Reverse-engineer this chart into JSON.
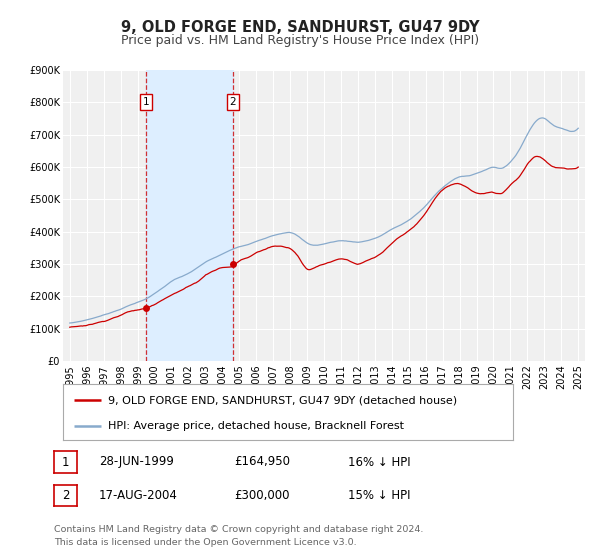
{
  "title": "9, OLD FORGE END, SANDHURST, GU47 9DY",
  "subtitle": "Price paid vs. HM Land Registry's House Price Index (HPI)",
  "ylim": [
    0,
    900000
  ],
  "yticks": [
    0,
    100000,
    200000,
    300000,
    400000,
    500000,
    600000,
    700000,
    800000,
    900000
  ],
  "ytick_labels": [
    "£0",
    "£100K",
    "£200K",
    "£300K",
    "£400K",
    "£500K",
    "£600K",
    "£700K",
    "£800K",
    "£900K"
  ],
  "xlim_start": 1994.6,
  "xlim_end": 2025.4,
  "xticks": [
    1995,
    1996,
    1997,
    1998,
    1999,
    2000,
    2001,
    2002,
    2003,
    2004,
    2005,
    2006,
    2007,
    2008,
    2009,
    2010,
    2011,
    2012,
    2013,
    2014,
    2015,
    2016,
    2017,
    2018,
    2019,
    2020,
    2021,
    2022,
    2023,
    2024,
    2025
  ],
  "red_line_color": "#cc0000",
  "blue_line_color": "#88aacc",
  "plot_bg_color": "#f0f0f0",
  "grid_color": "#ffffff",
  "shade_color": "#ddeeff",
  "marker1_date": 1999.49,
  "marker1_value": 164950,
  "marker2_date": 2004.63,
  "marker2_value": 300000,
  "vline1_date": 1999.49,
  "vline2_date": 2004.63,
  "legend_label_red": "9, OLD FORGE END, SANDHURST, GU47 9DY (detached house)",
  "legend_label_blue": "HPI: Average price, detached house, Bracknell Forest",
  "table_row1": [
    "1",
    "28-JUN-1999",
    "£164,950",
    "16% ↓ HPI"
  ],
  "table_row2": [
    "2",
    "17-AUG-2004",
    "£300,000",
    "15% ↓ HPI"
  ],
  "footer_line1": "Contains HM Land Registry data © Crown copyright and database right 2024.",
  "footer_line2": "This data is licensed under the Open Government Licence v3.0.",
  "title_fontsize": 10.5,
  "subtitle_fontsize": 9,
  "tick_fontsize": 7,
  "legend_fontsize": 8,
  "table_fontsize": 8.5,
  "footer_fontsize": 6.8,
  "hpi_data_x": [
    1995.0,
    1995.5,
    1996.0,
    1996.5,
    1997.0,
    1997.5,
    1998.0,
    1998.5,
    1999.0,
    1999.5,
    2000.0,
    2000.5,
    2001.0,
    2001.5,
    2002.0,
    2002.5,
    2003.0,
    2003.5,
    2004.0,
    2004.5,
    2005.0,
    2005.5,
    2006.0,
    2006.5,
    2007.0,
    2007.5,
    2008.0,
    2008.5,
    2009.0,
    2009.5,
    2010.0,
    2010.5,
    2011.0,
    2011.5,
    2012.0,
    2012.5,
    2013.0,
    2013.5,
    2014.0,
    2014.5,
    2015.0,
    2015.5,
    2016.0,
    2016.5,
    2017.0,
    2017.5,
    2018.0,
    2018.5,
    2019.0,
    2019.5,
    2020.0,
    2020.5,
    2021.0,
    2021.5,
    2022.0,
    2022.5,
    2023.0,
    2023.5,
    2024.0,
    2024.5,
    2025.0
  ],
  "hpi_data_y": [
    118000,
    122000,
    128000,
    135000,
    143000,
    152000,
    162000,
    173000,
    183000,
    193000,
    210000,
    228000,
    248000,
    260000,
    272000,
    288000,
    305000,
    318000,
    330000,
    342000,
    352000,
    358000,
    368000,
    378000,
    388000,
    395000,
    398000,
    385000,
    365000,
    358000,
    362000,
    368000,
    372000,
    370000,
    368000,
    372000,
    380000,
    392000,
    408000,
    420000,
    435000,
    455000,
    480000,
    510000,
    535000,
    555000,
    568000,
    572000,
    580000,
    590000,
    598000,
    595000,
    615000,
    650000,
    700000,
    740000,
    750000,
    730000,
    720000,
    710000,
    720000
  ],
  "prop_data_x": [
    1995.0,
    1995.5,
    1996.0,
    1996.5,
    1997.0,
    1997.5,
    1998.0,
    1998.5,
    1999.0,
    1999.49,
    2000.0,
    2000.5,
    2001.0,
    2001.5,
    2002.0,
    2002.5,
    2003.0,
    2003.5,
    2004.0,
    2004.63,
    2005.0,
    2005.5,
    2006.0,
    2006.5,
    2007.0,
    2007.5,
    2008.0,
    2008.5,
    2009.0,
    2009.5,
    2010.0,
    2010.5,
    2011.0,
    2011.5,
    2012.0,
    2012.5,
    2013.0,
    2013.5,
    2014.0,
    2014.5,
    2015.0,
    2015.5,
    2016.0,
    2016.5,
    2017.0,
    2017.5,
    2018.0,
    2018.5,
    2019.0,
    2019.5,
    2020.0,
    2020.5,
    2021.0,
    2021.5,
    2022.0,
    2022.5,
    2023.0,
    2023.5,
    2024.0,
    2024.5,
    2025.0
  ],
  "prop_data_y": [
    105000,
    108000,
    112000,
    118000,
    125000,
    135000,
    145000,
    155000,
    160000,
    164950,
    178000,
    195000,
    210000,
    222000,
    235000,
    248000,
    270000,
    285000,
    295000,
    300000,
    315000,
    325000,
    340000,
    350000,
    360000,
    360000,
    355000,
    330000,
    292000,
    298000,
    308000,
    318000,
    325000,
    320000,
    310000,
    318000,
    328000,
    345000,
    368000,
    388000,
    405000,
    430000,
    460000,
    500000,
    530000,
    545000,
    548000,
    535000,
    520000,
    518000,
    520000,
    518000,
    545000,
    570000,
    610000,
    635000,
    625000,
    605000,
    600000,
    595000,
    600000
  ]
}
